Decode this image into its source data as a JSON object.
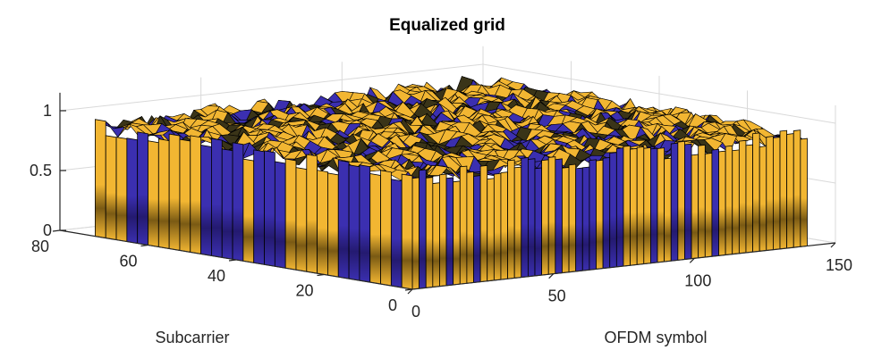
{
  "chart_data": {
    "type": "surface",
    "title": "Equalized grid",
    "xlabel": "OFDM symbol",
    "ylabel": "Subcarrier",
    "zlabel": "",
    "xlim": [
      0,
      150
    ],
    "ylim": [
      0,
      80
    ],
    "zlim": [
      0,
      1.15
    ],
    "x_ticks": [
      "0",
      "50",
      "100",
      "150"
    ],
    "y_ticks": [
      "0",
      "20",
      "40",
      "60",
      "80"
    ],
    "z_ticks": [
      "0",
      "0.5",
      "1"
    ],
    "grid": true,
    "data_extent": {
      "x": [
        0,
        140
      ],
      "y": [
        0,
        72
      ]
    },
    "typical_surface_z": [
      0.85,
      1.0
    ],
    "colors": {
      "surface_high": "#f2b632",
      "surface_low": "#3b2fb0",
      "edge": "#000000",
      "axis": "#262626",
      "grid": "#d9d9d9"
    }
  }
}
